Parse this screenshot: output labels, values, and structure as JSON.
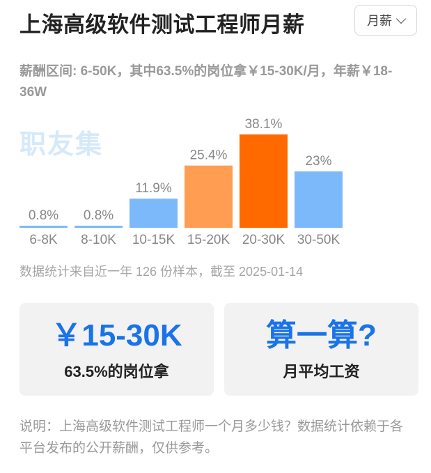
{
  "header": {
    "title": "上海高级软件测试工程师月薪"
  },
  "period_select": {
    "value": "月薪",
    "icon": "chevron-down-icon"
  },
  "summary": {
    "text": "薪酬区间: 6-50K，其中63.5%的岗位拿￥15-30K/月，年薪￥18-36W"
  },
  "watermark": {
    "text": "职友集"
  },
  "chart_data": {
    "type": "bar",
    "categories": [
      "6-8K",
      "8-10K",
      "10-15K",
      "15-20K",
      "20-30K",
      "30-50K"
    ],
    "values": [
      0.8,
      0.8,
      11.9,
      25.4,
      38.1,
      23
    ],
    "value_labels": [
      "0.8%",
      "0.8%",
      "11.9%",
      "25.4%",
      "38.1%",
      "23%"
    ],
    "colors": [
      "#7cb9fb",
      "#7cb9fb",
      "#7cb9fb",
      "#ff9e52",
      "#ff6a00",
      "#7cb9fb"
    ],
    "ylim": [
      0,
      38.1
    ],
    "grid": false,
    "title": "",
    "xlabel": "",
    "ylabel": ""
  },
  "footnote": {
    "text": "数据统计来自近一年 126 份样本，截至 2025-01-14"
  },
  "cards": {
    "range": {
      "big": "￥15-30K",
      "small": "63.5%的岗位拿"
    },
    "calc": {
      "big": "算一算?",
      "small": "月平均工资"
    }
  },
  "note": {
    "text": "说明：上海高级软件测试工程师一个月多少钱？数据统计依赖于各平台发布的公开薪酬，仅供参考。"
  }
}
